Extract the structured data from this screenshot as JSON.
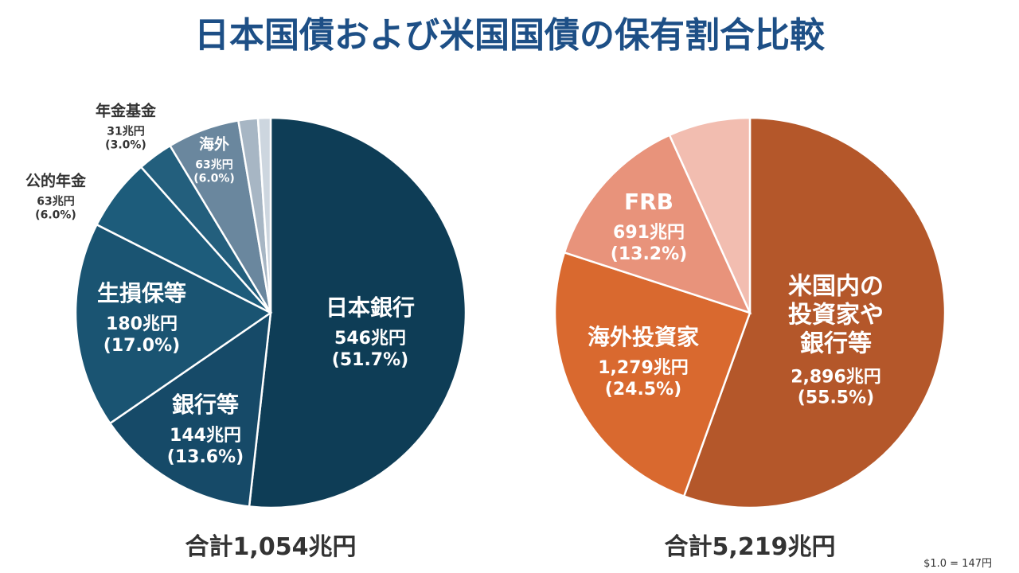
{
  "title": "日本国債および米国国債の保有割合比較",
  "note": "$1.0 = 147円",
  "chart_data": [
    {
      "type": "pie",
      "categories": [
        "日本銀行",
        "銀行等",
        "生損保等",
        "公的年金",
        "年金基金",
        "海外",
        null,
        null
      ],
      "values": [
        546,
        144,
        180,
        63,
        31,
        63,
        17,
        11
      ],
      "value_labels": [
        "546兆円",
        "144兆円",
        "180兆円",
        "63兆円",
        "31兆円",
        "63兆円",
        null,
        null
      ],
      "percents": [
        51.7,
        13.6,
        17.0,
        6.0,
        3.0,
        6.0,
        null,
        null
      ],
      "percent_labels": [
        "(51.7%)",
        "(13.6%)",
        "(17.0%)",
        "(6.0%)",
        "(3.0%)",
        "(6.0%)",
        null,
        null
      ],
      "colors": [
        "#0e3d56",
        "#164a68",
        "#1a5472",
        "#1d5c7b",
        "#235f7d",
        "#6a879e",
        "#a7b6c4",
        "#cdd6df"
      ],
      "total": "合計1,054兆円"
    },
    {
      "type": "pie",
      "categories": [
        "米国内の\n投資家や\n銀行等",
        "海外投資家",
        "FRB",
        null
      ],
      "values": [
        2896,
        1279,
        691,
        353
      ],
      "value_labels": [
        "2,896兆円",
        "1,279兆円",
        "691兆円",
        null
      ],
      "percents": [
        55.5,
        24.5,
        13.2,
        null
      ],
      "percent_labels": [
        "(55.5%)",
        "(24.5%)",
        "(13.2%)",
        null
      ],
      "colors": [
        "#b4572a",
        "#d9692f",
        "#e8937b",
        "#f2bdb0"
      ],
      "total": "合計5,219兆円"
    }
  ]
}
